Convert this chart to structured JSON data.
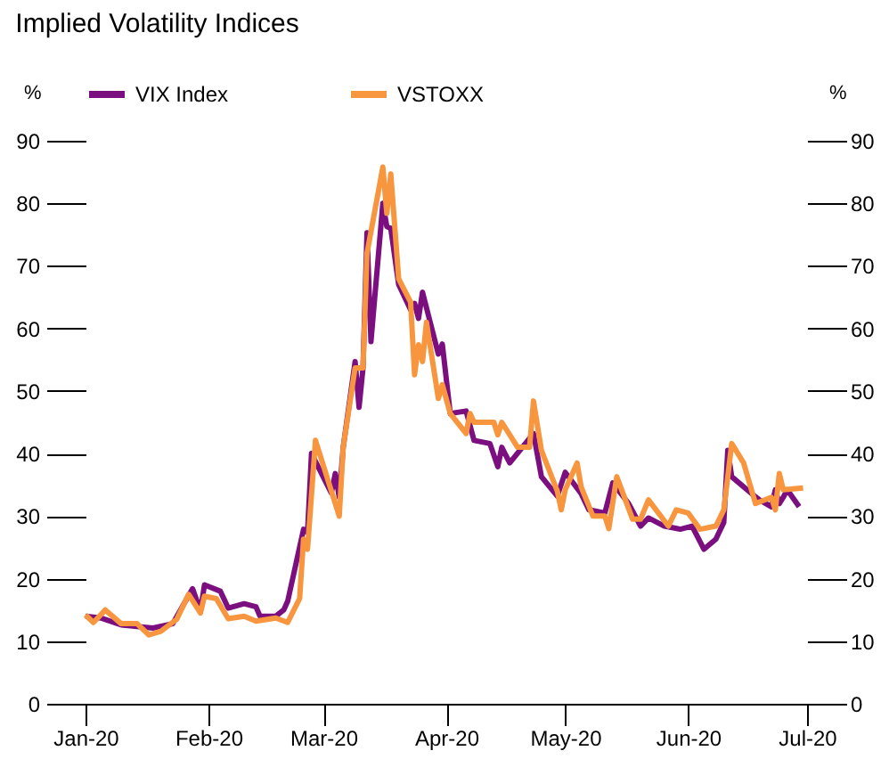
{
  "chart_data": {
    "type": "line",
    "title": "Implied Volatility Indices",
    "ylabel": "%",
    "y2label": "%",
    "xlim": [
      "2020-01-01",
      "2020-07-01"
    ],
    "xticks": [
      {
        "value": "2020-01-01",
        "label": "Jan-20"
      },
      {
        "value": "2020-02-01",
        "label": "Feb-20"
      },
      {
        "value": "2020-03-01",
        "label": "Mar-20"
      },
      {
        "value": "2020-04-01",
        "label": "Apr-20"
      },
      {
        "value": "2020-05-01",
        "label": "May-20"
      },
      {
        "value": "2020-06-01",
        "label": "Jun-20"
      },
      {
        "value": "2020-07-01",
        "label": "Jul-20"
      }
    ],
    "ylim": [
      0,
      90
    ],
    "yticks": [
      0,
      10,
      20,
      30,
      40,
      50,
      60,
      70,
      80,
      90
    ],
    "y2lim": [
      0,
      90
    ],
    "y2ticks": [
      0,
      10,
      20,
      30,
      40,
      50,
      60,
      70,
      80,
      90
    ],
    "grid": false,
    "legend": "top",
    "marker": "none",
    "line_style": "solid",
    "series": [
      {
        "name": "VIX Index",
        "color": "#7b0f7f",
        "x": [
          "2020-01-01",
          "2020-01-05",
          "2020-01-10",
          "2020-01-18",
          "2020-01-23",
          "2020-01-28",
          "2020-01-30",
          "2020-01-31",
          "2020-02-04",
          "2020-02-06",
          "2020-02-10",
          "2020-02-13",
          "2020-02-14",
          "2020-02-18",
          "2020-02-20",
          "2020-02-21",
          "2020-02-25",
          "2020-02-26",
          "2020-02-27",
          "2020-03-03",
          "2020-03-04",
          "2020-03-05",
          "2020-03-06",
          "2020-03-09",
          "2020-03-10",
          "2020-03-11",
          "2020-03-12",
          "2020-03-13",
          "2020-03-16",
          "2020-03-17",
          "2020-03-18",
          "2020-03-20",
          "2020-03-23",
          "2020-03-24",
          "2020-03-25",
          "2020-03-26",
          "2020-03-30",
          "2020-03-31",
          "2020-04-02",
          "2020-04-06",
          "2020-04-08",
          "2020-04-12",
          "2020-04-14",
          "2020-04-15",
          "2020-04-17",
          "2020-04-23",
          "2020-04-25",
          "2020-04-29",
          "2020-05-01",
          "2020-05-05",
          "2020-05-07",
          "2020-05-11",
          "2020-05-13",
          "2020-05-17",
          "2020-05-20",
          "2020-05-22",
          "2020-05-26",
          "2020-05-30",
          "2020-06-02",
          "2020-06-05",
          "2020-06-08",
          "2020-06-10",
          "2020-06-11",
          "2020-06-12",
          "2020-06-17",
          "2020-06-19",
          "2020-06-22",
          "2020-06-23",
          "2020-06-24",
          "2020-06-25",
          "2020-06-26",
          "2020-06-29"
        ],
        "values": [
          14,
          13.7,
          12.6,
          12.1,
          12.8,
          18.4,
          14.8,
          19,
          18,
          15.3,
          16,
          15.5,
          14,
          14,
          15,
          16.4,
          27.9,
          27.4,
          40,
          33.7,
          36.8,
          33,
          41,
          54.7,
          47.4,
          53.7,
          75.3,
          57.9,
          80,
          76.3,
          76,
          67,
          63,
          64,
          61.6,
          65.8,
          55.9,
          57.5,
          46.4,
          46.8,
          42.1,
          41.6,
          37.9,
          41,
          38.5,
          43.2,
          36.3,
          33.2,
          37,
          33.6,
          31,
          30.5,
          35.3,
          32,
          28.4,
          29.7,
          28.4,
          27.9,
          28.4,
          24.7,
          26.3,
          29,
          40.5,
          36.3,
          33.6,
          32.6,
          31.5,
          34.2,
          32,
          33,
          34.2,
          31.5
        ]
      },
      {
        "name": "VSTOXX",
        "color": "#f7963f",
        "x": [
          "2020-01-01",
          "2020-01-03",
          "2020-01-06",
          "2020-01-10",
          "2020-01-14",
          "2020-01-17",
          "2020-01-20",
          "2020-01-24",
          "2020-01-27",
          "2020-01-30",
          "2020-01-31",
          "2020-02-03",
          "2020-02-06",
          "2020-02-10",
          "2020-02-13",
          "2020-02-18",
          "2020-02-21",
          "2020-02-24",
          "2020-02-25",
          "2020-02-26",
          "2020-02-28",
          "2020-03-05",
          "2020-03-06",
          "2020-03-09",
          "2020-03-11",
          "2020-03-12",
          "2020-03-16",
          "2020-03-17",
          "2020-03-18",
          "2020-03-20",
          "2020-03-23",
          "2020-03-24",
          "2020-03-25",
          "2020-03-26",
          "2020-03-27",
          "2020-03-30",
          "2020-03-31",
          "2020-04-02",
          "2020-04-06",
          "2020-04-07",
          "2020-04-08",
          "2020-04-13",
          "2020-04-14",
          "2020-04-15",
          "2020-04-19",
          "2020-04-22",
          "2020-04-23",
          "2020-04-25",
          "2020-04-29",
          "2020-04-30",
          "2020-05-01",
          "2020-05-04",
          "2020-05-05",
          "2020-05-08",
          "2020-05-11",
          "2020-05-12",
          "2020-05-14",
          "2020-05-18",
          "2020-05-20",
          "2020-05-22",
          "2020-05-27",
          "2020-05-29",
          "2020-06-01",
          "2020-06-04",
          "2020-06-08",
          "2020-06-10",
          "2020-06-12",
          "2020-06-15",
          "2020-06-18",
          "2020-06-22",
          "2020-06-23",
          "2020-06-24",
          "2020-06-25",
          "2020-06-30"
        ],
        "values": [
          14.2,
          13,
          15,
          12.8,
          12.8,
          11,
          11.6,
          13.5,
          17.5,
          14.5,
          17.2,
          16.8,
          13.6,
          14,
          13.2,
          13.7,
          13,
          16.8,
          26.3,
          24.7,
          42.1,
          30,
          41,
          53.7,
          53.7,
          72,
          85.8,
          78.4,
          84.7,
          67.9,
          64.2,
          52.6,
          57.4,
          54.7,
          61,
          48.8,
          51,
          46.4,
          43.2,
          46.4,
          45,
          45,
          43,
          45,
          41,
          41,
          48.4,
          40.5,
          34,
          31,
          34.2,
          38.5,
          34.7,
          30,
          30,
          28,
          36.3,
          29.5,
          29.5,
          32.6,
          28.4,
          31,
          30.5,
          27.9,
          28.4,
          31,
          41.6,
          38.5,
          32,
          33,
          31,
          36.8,
          34.2,
          34.5
        ]
      }
    ]
  }
}
